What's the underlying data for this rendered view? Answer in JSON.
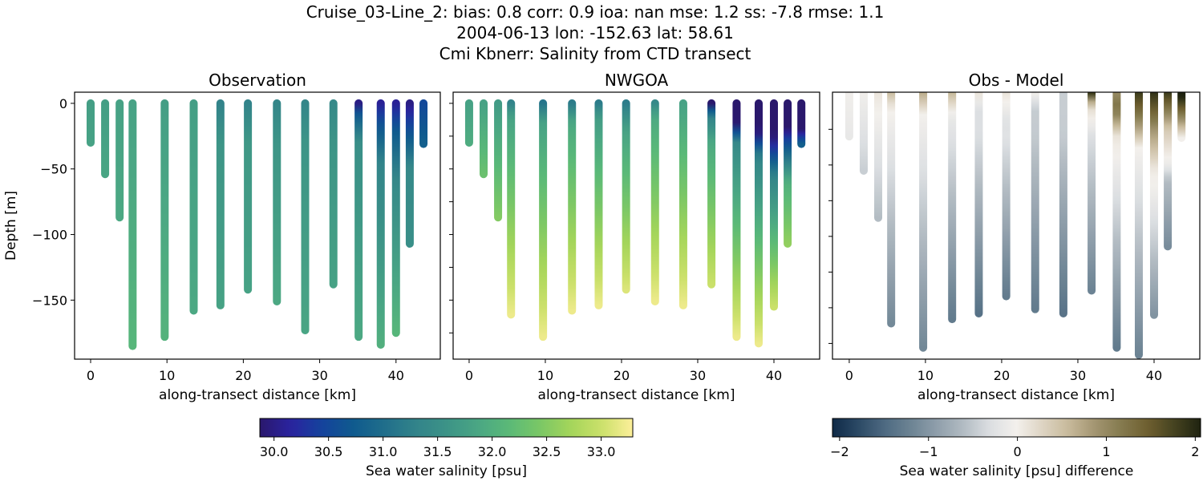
{
  "title_lines": [
    "Cruise_03-Line_2: bias: 0.8  corr: 0.9  ioa: nan  mse: 1.2  ss: -7.8  rmse: 1.1",
    "2004-06-13 lon: -152.63 lat: 58.61",
    "Cmi Kbnerr: Salinity from CTD transect"
  ],
  "chart_data": [
    {
      "type": "scatter",
      "title": "Observation",
      "xlabel": "along-transect distance [km]",
      "ylabel": "Depth [m]",
      "xlim": [
        -2.1,
        45.8
      ],
      "ylim": [
        -195,
        8.5
      ],
      "xticks": [
        0,
        10,
        20,
        30,
        40
      ],
      "yticks": [
        0,
        -50,
        -100,
        -150
      ],
      "ytick_labels": true,
      "colormap": "haline",
      "clim": [
        29.87,
        33.29
      ],
      "field": "obs"
    },
    {
      "type": "scatter",
      "title": "NWGOA",
      "xlabel": "along-transect distance [km]",
      "ylabel": "",
      "xlim": [
        -2.1,
        46.0
      ],
      "ylim": [
        -195,
        8.5
      ],
      "xticks": [
        0,
        10,
        20,
        30,
        40
      ],
      "yticks": [
        0,
        -25,
        -50,
        -75,
        -100,
        -125,
        -150,
        -175
      ],
      "ytick_labels": false,
      "colormap": "haline",
      "clim": [
        29.87,
        33.29
      ],
      "field": "model"
    },
    {
      "type": "scatter",
      "title": "Obs - Model",
      "xlabel": "along-transect distance [km]",
      "ylabel": "",
      "xlim": [
        -2.2,
        46.0
      ],
      "ylim": [
        -186,
        1
      ],
      "xticks": [
        0,
        10,
        20,
        30,
        40
      ],
      "yticks": [
        -25,
        -50,
        -75,
        -100,
        -125,
        -150,
        -175
      ],
      "ytick_labels": false,
      "colormap": "diff",
      "clim": [
        -2.08,
        2.06
      ],
      "field": "diff"
    }
  ],
  "profiles": [
    {
      "x": 0,
      "obs": [
        [
          0,
          31.75
        ],
        [
          -30,
          31.8
        ]
      ],
      "model": [
        [
          0,
          31.8
        ],
        [
          -30,
          31.95
        ]
      ]
    },
    {
      "x": 1.9,
      "obs": [
        [
          0,
          31.75
        ],
        [
          -54,
          31.85
        ]
      ],
      "model": [
        [
          0,
          31.8
        ],
        [
          -54,
          32.3
        ]
      ]
    },
    {
      "x": 3.8,
      "obs": [
        [
          0,
          31.8
        ],
        [
          -87,
          31.9
        ]
      ],
      "model": [
        [
          0,
          31.7
        ],
        [
          -87,
          32.5
        ]
      ]
    },
    {
      "x": 5.5,
      "obs": [
        [
          0,
          31.8
        ],
        [
          -185,
          32.1
        ]
      ],
      "model": [
        [
          0,
          31.3
        ],
        [
          -10,
          31.8
        ],
        [
          -161,
          33.2
        ]
      ]
    },
    {
      "x": 9.7,
      "obs": [
        [
          0,
          31.75
        ],
        [
          -178,
          32.05
        ]
      ],
      "model": [
        [
          0,
          31.1
        ],
        [
          -15,
          31.8
        ],
        [
          -178,
          33.2
        ]
      ]
    },
    {
      "x": 13.5,
      "obs": [
        [
          0,
          31.75
        ],
        [
          -158,
          31.9
        ]
      ],
      "model": [
        [
          0,
          31.2
        ],
        [
          -15,
          31.9
        ],
        [
          -158,
          33.2
        ]
      ]
    },
    {
      "x": 17,
      "obs": [
        [
          0,
          31.3
        ],
        [
          -30,
          31.6
        ],
        [
          -154,
          31.8
        ]
      ],
      "model": [
        [
          0,
          31.2
        ],
        [
          -10,
          31.7
        ],
        [
          -154,
          33.2
        ]
      ]
    },
    {
      "x": 20.6,
      "obs": [
        [
          0,
          31.3
        ],
        [
          -30,
          31.65
        ],
        [
          -142,
          31.8
        ]
      ],
      "model": [
        [
          0,
          31.2
        ],
        [
          -20,
          31.8
        ],
        [
          -142,
          33.1
        ]
      ]
    },
    {
      "x": 24.4,
      "obs": [
        [
          0,
          31.35
        ],
        [
          -30,
          31.6
        ],
        [
          -151,
          31.9
        ]
      ],
      "model": [
        [
          0,
          31.4
        ],
        [
          -10,
          31.9
        ],
        [
          -151,
          33.2
        ]
      ]
    },
    {
      "x": 28.1,
      "obs": [
        [
          0,
          31.35
        ],
        [
          -30,
          31.6
        ],
        [
          -173,
          31.85
        ]
      ],
      "model": [
        [
          0,
          31.8
        ],
        [
          -154,
          33.2
        ]
      ]
    },
    {
      "x": 31.8,
      "obs": [
        [
          0,
          31.4
        ],
        [
          -30,
          31.6
        ],
        [
          -138,
          31.8
        ]
      ],
      "model": [
        [
          0,
          29.6
        ],
        [
          -8,
          31.2
        ],
        [
          -30,
          31.9
        ],
        [
          -138,
          33.0
        ]
      ]
    },
    {
      "x": 35.1,
      "obs": [
        [
          0,
          30.0
        ],
        [
          -8,
          30.7
        ],
        [
          -30,
          31.5
        ],
        [
          -178,
          31.9
        ]
      ],
      "model": [
        [
          0,
          29.0
        ],
        [
          -15,
          29.9
        ],
        [
          -30,
          31.4
        ],
        [
          -178,
          33.2
        ]
      ]
    },
    {
      "x": 38,
      "obs": [
        [
          0,
          30.1
        ],
        [
          -15,
          30.6
        ],
        [
          -45,
          31.3
        ],
        [
          -184,
          32.0
        ]
      ],
      "model": [
        [
          0,
          28.3
        ],
        [
          -22,
          29.9
        ],
        [
          -40,
          31.3
        ],
        [
          -183,
          33.2
        ]
      ]
    },
    {
      "x": 40,
      "obs": [
        [
          0,
          30.1
        ],
        [
          -20,
          30.7
        ],
        [
          -60,
          31.4
        ],
        [
          -175,
          32.1
        ]
      ],
      "model": [
        [
          0,
          28.2
        ],
        [
          -25,
          29.9
        ],
        [
          -55,
          31.3
        ],
        [
          -155,
          33.0
        ]
      ]
    },
    {
      "x": 41.8,
      "obs": [
        [
          0,
          30.0
        ],
        [
          -25,
          30.7
        ],
        [
          -50,
          31.4
        ],
        [
          -107,
          31.5
        ]
      ],
      "model": [
        [
          0,
          28.2
        ],
        [
          -25,
          30.3
        ],
        [
          -60,
          32.0
        ],
        [
          -107,
          32.6
        ]
      ]
    },
    {
      "x": 43.6,
      "obs": [
        [
          0,
          30.5
        ],
        [
          -31,
          30.8
        ]
      ],
      "model": [
        [
          0,
          28.3
        ],
        [
          -20,
          29.9
        ],
        [
          -31,
          30.8
        ]
      ]
    }
  ],
  "colorbars": [
    {
      "label": "Sea water salinity [psu]",
      "colormap": "haline",
      "clim": [
        29.87,
        33.29
      ],
      "ticks": [
        30.0,
        30.5,
        31.0,
        31.5,
        32.0,
        32.5,
        33.0
      ],
      "tick_labels": [
        "30.0",
        "30.5",
        "31.0",
        "31.5",
        "32.0",
        "32.5",
        "33.0"
      ]
    },
    {
      "label": "Sea water salinity [psu] difference",
      "colormap": "diff",
      "clim": [
        -2.08,
        2.06
      ],
      "ticks": [
        -2,
        -1,
        0,
        1,
        2
      ],
      "tick_labels": [
        "−2",
        "−1",
        "0",
        "1",
        "2"
      ]
    }
  ]
}
